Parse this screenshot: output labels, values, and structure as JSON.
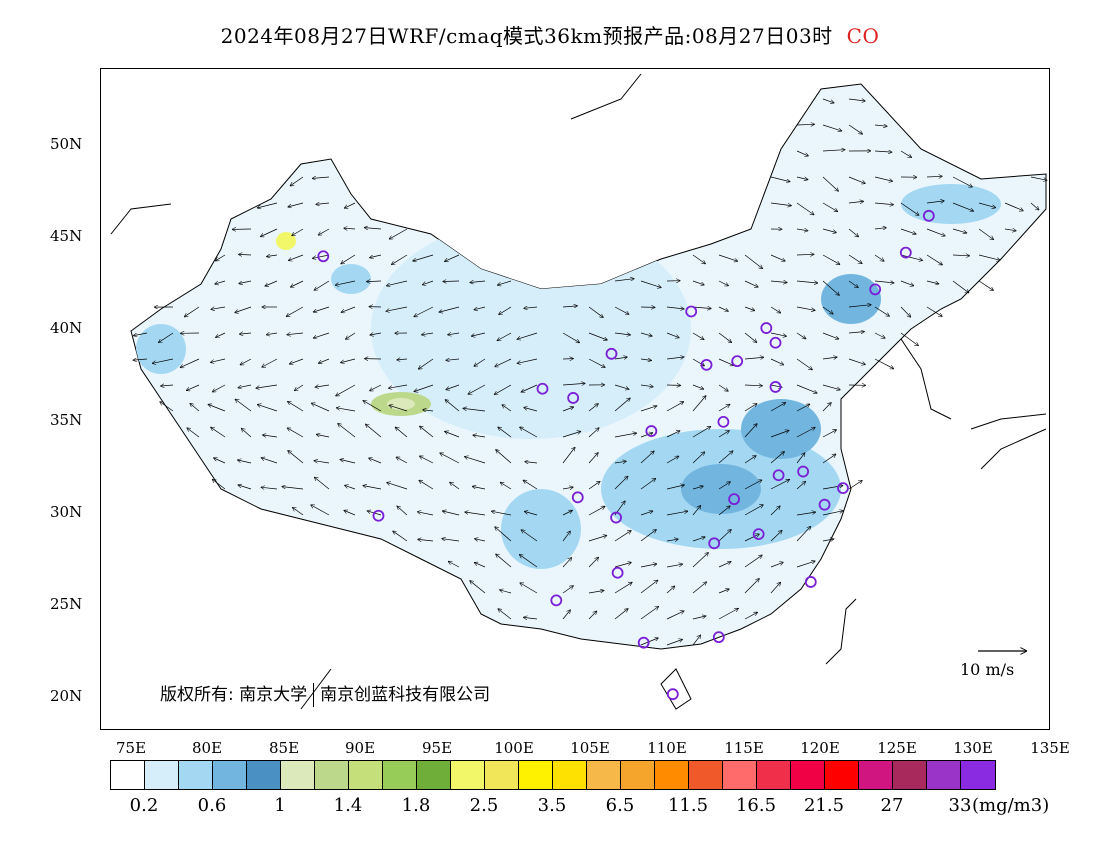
{
  "title": "2024年08月27日WRF/cmaq模式36km预报产品:08月27日03时",
  "species": "CO",
  "lat_labels": [
    "50N",
    "45N",
    "40N",
    "35N",
    "30N",
    "25N",
    "20N"
  ],
  "lon_labels": [
    "75E",
    "80E",
    "85E",
    "90E",
    "95E",
    "100E",
    "105E",
    "110E",
    "115E",
    "120E",
    "125E",
    "130E",
    "135E"
  ],
  "copyright": {
    "left": "版权所有: 南京大学",
    "right": "南京创蓝科技有限公司"
  },
  "wind_legend": "10 m/s",
  "colorbar": {
    "colors": [
      "#ffffff",
      "#d6eefa",
      "#a4d8f2",
      "#72b6e0",
      "#4a90c2",
      "#dce9bb",
      "#bcd88a",
      "#c5e07b",
      "#98cc58",
      "#6fae38",
      "#f2f76a",
      "#f1e65a",
      "#fff200",
      "#ffe100",
      "#f7b84a",
      "#f5a52b",
      "#ff8c00",
      "#f05a2a",
      "#ff6a6a",
      "#f0304a",
      "#f00044",
      "#ff0000",
      "#d01480",
      "#a82a5c",
      "#9a33c8",
      "#8a2be2"
    ],
    "tick_labels": [
      "0.2",
      "0.6",
      "1",
      "1.4",
      "1.8",
      "2.5",
      "3.5",
      "6.5",
      "11.5",
      "16.5",
      "21.5",
      "27",
      "33"
    ],
    "unit": "(mg/m3)"
  },
  "stations": [
    [
      127,
      46
    ],
    [
      125.5,
      44
    ],
    [
      123.5,
      42
    ],
    [
      87.5,
      43.8
    ],
    [
      116.4,
      39.9
    ],
    [
      117,
      39.1
    ],
    [
      111.5,
      40.8
    ],
    [
      112.5,
      37.9
    ],
    [
      114.5,
      38.1
    ],
    [
      106.3,
      38.5
    ],
    [
      101.8,
      36.6
    ],
    [
      103.8,
      36.1
    ],
    [
      108.9,
      34.3
    ],
    [
      113.6,
      34.8
    ],
    [
      117,
      36.7
    ],
    [
      121.4,
      31.2
    ],
    [
      118.8,
      32.1
    ],
    [
      117.2,
      31.9
    ],
    [
      114.3,
      30.6
    ],
    [
      113,
      28.2
    ],
    [
      115.9,
      28.7
    ],
    [
      120.2,
      30.3
    ],
    [
      119.3,
      26.1
    ],
    [
      106.6,
      29.6
    ],
    [
      104.1,
      30.7
    ],
    [
      106.7,
      26.6
    ],
    [
      102.7,
      25.1
    ],
    [
      108.4,
      22.8
    ],
    [
      113.3,
      23.1
    ],
    [
      110.3,
      20
    ],
    [
      91.1,
      29.7
    ]
  ]
}
